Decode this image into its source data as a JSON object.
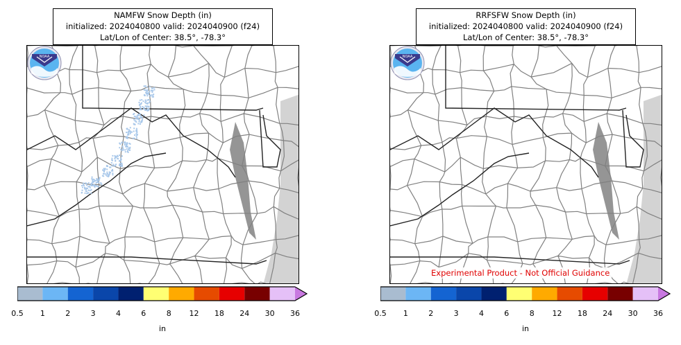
{
  "panels": [
    {
      "id": "namfw",
      "title_line1": "NAMFW Snow Depth (in)",
      "title_line2": "initialized: 2024040800 valid: 2024040900 (f24)",
      "title_line3": "Lat/Lon of Center: 38.5°, -78.3°",
      "logo": "noaa-logo",
      "disclaimer": "",
      "has_snow": true
    },
    {
      "id": "rrfsfw",
      "title_line1": "RRFSFW Snow Depth (in)",
      "title_line2": "initialized: 2024040800 valid: 2024040900 (f24)",
      "title_line3": "Lat/Lon of Center: 38.5°, -78.3°",
      "logo": "noaa-logo",
      "disclaimer": "Experimental Product - Not Official Guidance",
      "has_snow": false
    }
  ],
  "colorbar": {
    "unit": "in",
    "levels": [
      "0.5",
      "1",
      "2",
      "3",
      "4",
      "6",
      "8",
      "12",
      "18",
      "24",
      "30",
      "36"
    ],
    "colors": [
      "#a9bcd0",
      "#6cb6f5",
      "#1464d2",
      "#0a46aa",
      "#002070",
      "#ffff73",
      "#ffaa00",
      "#e64b00",
      "#e60000",
      "#780000",
      "#e5c0f7"
    ],
    "extend_color": "#c878e0"
  },
  "map_colors": {
    "land": "#ffffff",
    "water": "#d3d3d3",
    "county_lines": "#808080",
    "state_lines": "#222222",
    "snow": "#a9c8ea"
  }
}
